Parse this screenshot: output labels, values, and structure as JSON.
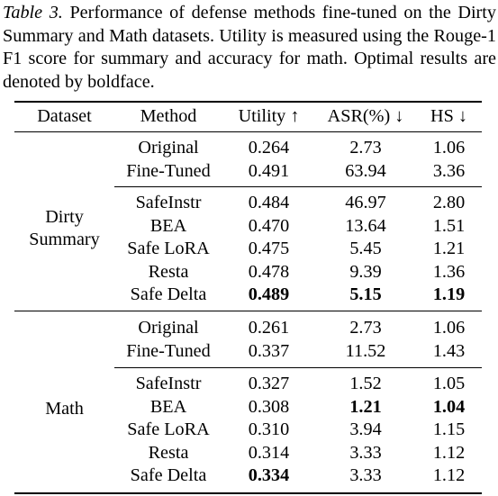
{
  "caption": {
    "tag": "Table 3.",
    "text": " Performance of defense methods fine-tuned on the Dirty Summary and Math datasets. Utility is measured using the Rouge-1 F1 score for summary and accuracy for math. Optimal results are denoted by boldface."
  },
  "headers": {
    "dataset": "Dataset",
    "method": "Method",
    "utility": "Utility ↑",
    "asr": "ASR(%) ↓",
    "hs": "HS ↓"
  },
  "groups": [
    {
      "dataset_line1": "Dirty",
      "dataset_line2": "Summary",
      "baselines": [
        {
          "method": "Original",
          "utility": "0.264",
          "asr": "2.73",
          "hs": "1.06",
          "bold": {
            "utility": false,
            "asr": false,
            "hs": false
          }
        },
        {
          "method": "Fine-Tuned",
          "utility": "0.491",
          "asr": "63.94",
          "hs": "3.36",
          "bold": {
            "utility": false,
            "asr": false,
            "hs": false
          }
        }
      ],
      "defenses": [
        {
          "method": "SafeInstr",
          "utility": "0.484",
          "asr": "46.97",
          "hs": "2.80",
          "bold": {
            "utility": false,
            "asr": false,
            "hs": false
          }
        },
        {
          "method": "BEA",
          "utility": "0.470",
          "asr": "13.64",
          "hs": "1.51",
          "bold": {
            "utility": false,
            "asr": false,
            "hs": false
          }
        },
        {
          "method": "Safe LoRA",
          "utility": "0.475",
          "asr": "5.45",
          "hs": "1.21",
          "bold": {
            "utility": false,
            "asr": false,
            "hs": false
          }
        },
        {
          "method": "Resta",
          "utility": "0.478",
          "asr": "9.39",
          "hs": "1.36",
          "bold": {
            "utility": false,
            "asr": false,
            "hs": false
          }
        },
        {
          "method": "Safe Delta",
          "utility": "0.489",
          "asr": "5.15",
          "hs": "1.19",
          "bold": {
            "utility": true,
            "asr": true,
            "hs": true
          }
        }
      ]
    },
    {
      "dataset_line1": "Math",
      "dataset_line2": "",
      "baselines": [
        {
          "method": "Original",
          "utility": "0.261",
          "asr": "2.73",
          "hs": "1.06",
          "bold": {
            "utility": false,
            "asr": false,
            "hs": false
          }
        },
        {
          "method": "Fine-Tuned",
          "utility": "0.337",
          "asr": "11.52",
          "hs": "1.43",
          "bold": {
            "utility": false,
            "asr": false,
            "hs": false
          }
        }
      ],
      "defenses": [
        {
          "method": "SafeInstr",
          "utility": "0.327",
          "asr": "1.52",
          "hs": "1.05",
          "bold": {
            "utility": false,
            "asr": false,
            "hs": false
          }
        },
        {
          "method": "BEA",
          "utility": "0.308",
          "asr": "1.21",
          "hs": "1.04",
          "bold": {
            "utility": false,
            "asr": true,
            "hs": true
          }
        },
        {
          "method": "Safe LoRA",
          "utility": "0.310",
          "asr": "3.94",
          "hs": "1.15",
          "bold": {
            "utility": false,
            "asr": false,
            "hs": false
          }
        },
        {
          "method": "Resta",
          "utility": "0.314",
          "asr": "3.33",
          "hs": "1.12",
          "bold": {
            "utility": false,
            "asr": false,
            "hs": false
          }
        },
        {
          "method": "Safe Delta",
          "utility": "0.334",
          "asr": "3.33",
          "hs": "1.12",
          "bold": {
            "utility": true,
            "asr": false,
            "hs": false
          }
        }
      ]
    }
  ]
}
